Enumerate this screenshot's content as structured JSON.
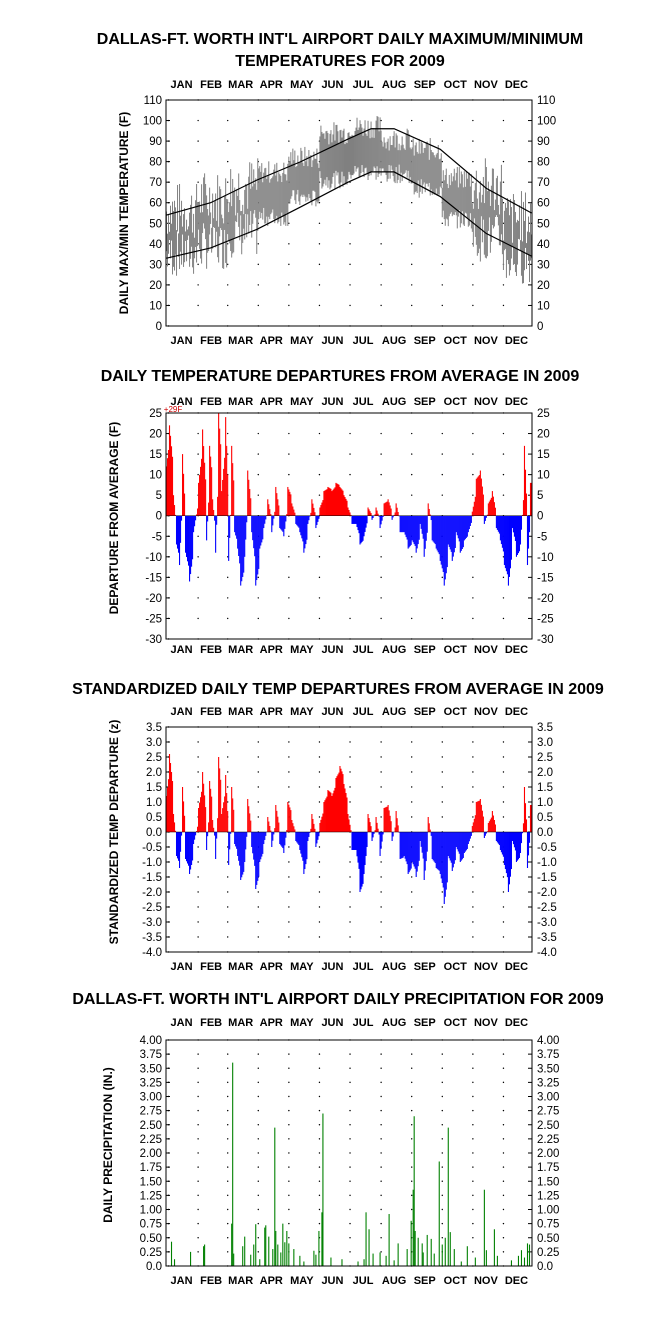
{
  "months": [
    "JAN",
    "FEB",
    "MAR",
    "APR",
    "MAY",
    "JUN",
    "JUL",
    "AUG",
    "SEP",
    "OCT",
    "NOV",
    "DEC"
  ],
  "colors": {
    "range_bar": "#808080",
    "normal_line": "#000000",
    "above": "#ff0000",
    "below": "#0000ff",
    "precip": "#008000",
    "annotation": "#cc0000"
  },
  "chart_data": [
    {
      "type": "line",
      "title": "DALLAS-FT. WORTH INT'L AIRPORT DAILY MAXIMUM/MINIMUM",
      "subtitle": "TEMPERATURES FOR 2009",
      "ylabel": "DAILY MAX/MIN TEMPERATURE (F)",
      "ylim": [
        0,
        110
      ],
      "yticks": [
        "110",
        "100",
        "90",
        "80",
        "70",
        "60",
        "50",
        "40",
        "30",
        "20",
        "10",
        "0"
      ],
      "grid": "dotted",
      "x_unit": "day of year",
      "series": [
        {
          "role": "daily range (gray bars)",
          "approx_max_by_month": [
            56,
            62,
            68,
            75,
            82,
            94,
            97,
            91,
            86,
            72,
            68,
            52
          ],
          "approx_min_by_month": [
            35,
            39,
            45,
            53,
            62,
            71,
            75,
            74,
            67,
            52,
            43,
            32
          ]
        },
        {
          "role": "normal high",
          "points": [
            [
              1,
              54
            ],
            [
              45,
              60
            ],
            [
              91,
              71
            ],
            [
              135,
              80
            ],
            [
              182,
              91
            ],
            [
              205,
              96
            ],
            [
              228,
              96
            ],
            [
              274,
              86
            ],
            [
              320,
              67
            ],
            [
              365,
              55
            ]
          ]
        },
        {
          "role": "normal low",
          "points": [
            [
              1,
              33
            ],
            [
              45,
              38
            ],
            [
              91,
              47
            ],
            [
              135,
              58
            ],
            [
              182,
              70
            ],
            [
              205,
              75
            ],
            [
              228,
              75
            ],
            [
              274,
              63
            ],
            [
              320,
              45
            ],
            [
              365,
              34
            ]
          ]
        }
      ]
    },
    {
      "type": "bar",
      "title": "DAILY TEMPERATURE DEPARTURES FROM AVERAGE IN 2009",
      "ylabel": "DEPARTURE FROM AVERAGE (F)",
      "ylim": [
        -30,
        25
      ],
      "yticks": [
        "25",
        "20",
        "15",
        "10",
        "5",
        "0",
        "-5",
        "-10",
        "-15",
        "-20",
        "-25",
        "-30"
      ],
      "annotation": "+29F",
      "grid": "dotted",
      "daily_values_by_segment": [
        [
          1,
          12
        ],
        [
          4,
          22
        ],
        [
          8,
          5
        ],
        [
          11,
          -7
        ],
        [
          14,
          -12
        ],
        [
          17,
          15
        ],
        [
          20,
          -9
        ],
        [
          24,
          -16
        ],
        [
          28,
          -4
        ],
        [
          33,
          8
        ],
        [
          37,
          21
        ],
        [
          41,
          -6
        ],
        [
          44,
          17
        ],
        [
          47,
          4
        ],
        [
          50,
          -9
        ],
        [
          53,
          25
        ],
        [
          56,
          6
        ],
        [
          60,
          24
        ],
        [
          63,
          -11
        ],
        [
          66,
          17
        ],
        [
          69,
          -4
        ],
        [
          72,
          -8
        ],
        [
          75,
          -17
        ],
        [
          79,
          -10
        ],
        [
          82,
          11
        ],
        [
          86,
          -4
        ],
        [
          90,
          -17
        ],
        [
          94,
          -8
        ],
        [
          98,
          -3
        ],
        [
          102,
          4
        ],
        [
          106,
          -4
        ],
        [
          110,
          7
        ],
        [
          114,
          -3
        ],
        [
          118,
          -5
        ],
        [
          122,
          7
        ],
        [
          126,
          3
        ],
        [
          130,
          -2
        ],
        [
          134,
          -4
        ],
        [
          138,
          -9
        ],
        [
          142,
          -2
        ],
        [
          146,
          4
        ],
        [
          150,
          -3
        ],
        [
          154,
          2
        ],
        [
          158,
          6
        ],
        [
          162,
          7
        ],
        [
          166,
          6
        ],
        [
          170,
          8
        ],
        [
          174,
          7
        ],
        [
          178,
          5
        ],
        [
          182,
          2
        ],
        [
          186,
          -2
        ],
        [
          190,
          -2
        ],
        [
          194,
          -7
        ],
        [
          198,
          -5
        ],
        [
          202,
          2
        ],
        [
          206,
          -1
        ],
        [
          210,
          2
        ],
        [
          214,
          -3
        ],
        [
          218,
          3
        ],
        [
          222,
          4
        ],
        [
          226,
          -1
        ],
        [
          230,
          3
        ],
        [
          234,
          -4
        ],
        [
          238,
          -4
        ],
        [
          242,
          -8
        ],
        [
          246,
          -6
        ],
        [
          250,
          -9
        ],
        [
          254,
          -2
        ],
        [
          258,
          -10
        ],
        [
          262,
          3
        ],
        [
          266,
          -6
        ],
        [
          270,
          -8
        ],
        [
          274,
          -11
        ],
        [
          278,
          -17
        ],
        [
          282,
          -7
        ],
        [
          286,
          -11
        ],
        [
          290,
          -4
        ],
        [
          294,
          -9
        ],
        [
          298,
          -6
        ],
        [
          302,
          -4
        ],
        [
          306,
          1
        ],
        [
          310,
          9
        ],
        [
          314,
          11
        ],
        [
          318,
          -2
        ],
        [
          322,
          3
        ],
        [
          326,
          6
        ],
        [
          330,
          -3
        ],
        [
          334,
          -6
        ],
        [
          338,
          -12
        ],
        [
          342,
          -17
        ],
        [
          346,
          -3
        ],
        [
          350,
          -10
        ],
        [
          354,
          -7
        ],
        [
          358,
          17
        ],
        [
          361,
          -12
        ],
        [
          364,
          8
        ]
      ]
    },
    {
      "type": "bar",
      "title": "STANDARDIZED DAILY TEMP DEPARTURES FROM AVERAGE IN 2009",
      "ylabel": "STANDARDIZED TEMP DEPARTURE (z)",
      "ylim": [
        -4.0,
        3.5
      ],
      "yticks": [
        "3.5",
        "3.0",
        "2.5",
        "2.0",
        "1.5",
        "1.0",
        "0.5",
        "0.0",
        "-0.5",
        "-1.0",
        "-1.5",
        "-2.0",
        "-2.5",
        "-3.0",
        "-3.5",
        "-4.0"
      ],
      "grid": "dotted",
      "daily_values_by_segment": [
        [
          1,
          1.2
        ],
        [
          4,
          2.6
        ],
        [
          8,
          0.6
        ],
        [
          11,
          -0.8
        ],
        [
          14,
          -1.2
        ],
        [
          17,
          1.5
        ],
        [
          20,
          -0.9
        ],
        [
          24,
          -1.4
        ],
        [
          28,
          -0.4
        ],
        [
          33,
          0.8
        ],
        [
          37,
          2.0
        ],
        [
          41,
          -0.6
        ],
        [
          44,
          1.7
        ],
        [
          47,
          0.4
        ],
        [
          50,
          -0.9
        ],
        [
          53,
          2.5
        ],
        [
          56,
          0.6
        ],
        [
          60,
          1.9
        ],
        [
          63,
          -1.1
        ],
        [
          66,
          1.5
        ],
        [
          69,
          -0.4
        ],
        [
          72,
          -0.8
        ],
        [
          75,
          -1.6
        ],
        [
          79,
          -1.0
        ],
        [
          82,
          1.1
        ],
        [
          86,
          -0.5
        ],
        [
          90,
          -1.9
        ],
        [
          94,
          -1.0
        ],
        [
          98,
          -0.4
        ],
        [
          102,
          0.5
        ],
        [
          106,
          -0.5
        ],
        [
          110,
          0.9
        ],
        [
          114,
          -0.4
        ],
        [
          118,
          -0.7
        ],
        [
          122,
          1.0
        ],
        [
          126,
          0.4
        ],
        [
          130,
          -0.3
        ],
        [
          134,
          -0.6
        ],
        [
          138,
          -1.4
        ],
        [
          142,
          -0.3
        ],
        [
          146,
          0.6
        ],
        [
          150,
          -0.5
        ],
        [
          154,
          0.3
        ],
        [
          158,
          1.0
        ],
        [
          162,
          1.4
        ],
        [
          166,
          1.2
        ],
        [
          170,
          1.8
        ],
        [
          174,
          2.2
        ],
        [
          178,
          1.6
        ],
        [
          182,
          0.6
        ],
        [
          186,
          -0.6
        ],
        [
          190,
          -0.6
        ],
        [
          194,
          -2.0
        ],
        [
          198,
          -1.4
        ],
        [
          202,
          0.6
        ],
        [
          206,
          -0.3
        ],
        [
          210,
          0.5
        ],
        [
          214,
          -0.8
        ],
        [
          218,
          0.8
        ],
        [
          222,
          0.9
        ],
        [
          226,
          -0.3
        ],
        [
          230,
          0.7
        ],
        [
          234,
          -0.9
        ],
        [
          238,
          -0.8
        ],
        [
          242,
          -1.4
        ],
        [
          246,
          -1.0
        ],
        [
          250,
          -1.5
        ],
        [
          254,
          -0.3
        ],
        [
          258,
          -1.6
        ],
        [
          262,
          0.5
        ],
        [
          266,
          -0.9
        ],
        [
          270,
          -1.2
        ],
        [
          274,
          -1.4
        ],
        [
          278,
          -2.4
        ],
        [
          282,
          -0.8
        ],
        [
          286,
          -1.3
        ],
        [
          290,
          -0.5
        ],
        [
          294,
          -1.0
        ],
        [
          298,
          -0.7
        ],
        [
          302,
          -0.4
        ],
        [
          306,
          0.2
        ],
        [
          310,
          1.0
        ],
        [
          314,
          1.1
        ],
        [
          318,
          -0.2
        ],
        [
          322,
          0.3
        ],
        [
          326,
          0.7
        ],
        [
          330,
          -0.3
        ],
        [
          334,
          -0.6
        ],
        [
          338,
          -1.1
        ],
        [
          342,
          -2.0
        ],
        [
          346,
          -0.3
        ],
        [
          350,
          -1.0
        ],
        [
          354,
          -0.7
        ],
        [
          358,
          1.5
        ],
        [
          361,
          -1.2
        ],
        [
          364,
          0.9
        ]
      ]
    },
    {
      "type": "bar",
      "title": "DALLAS-FT. WORTH INT'L AIRPORT DAILY PRECIPITATION FOR 2009",
      "ylabel": "DAILY PRECIPITATION (IN.)",
      "ylim": [
        0.0,
        4.0
      ],
      "yticks": [
        "4.00",
        "3.75",
        "3.50",
        "3.25",
        "3.00",
        "2.75",
        "2.50",
        "2.25",
        "2.00",
        "1.75",
        "1.50",
        "1.25",
        "1.00",
        "0.75",
        "0.50",
        "0.25",
        "0.0"
      ],
      "grid": "dotted",
      "daily_values": [
        [
          6,
          0.43
        ],
        [
          9,
          0.12
        ],
        [
          25,
          0.25
        ],
        [
          38,
          0.35
        ],
        [
          39,
          0.38
        ],
        [
          66,
          0.75
        ],
        [
          67,
          3.6
        ],
        [
          68,
          0.22
        ],
        [
          77,
          0.35
        ],
        [
          79,
          0.52
        ],
        [
          85,
          0.2
        ],
        [
          88,
          0.38
        ],
        [
          90,
          0.74
        ],
        [
          94,
          0.12
        ],
        [
          99,
          0.68
        ],
        [
          100,
          0.72
        ],
        [
          103,
          0.52
        ],
        [
          107,
          0.3
        ],
        [
          109,
          2.45
        ],
        [
          110,
          0.62
        ],
        [
          112,
          0.38
        ],
        [
          115,
          0.24
        ],
        [
          117,
          0.75
        ],
        [
          119,
          0.42
        ],
        [
          121,
          0.62
        ],
        [
          123,
          0.4
        ],
        [
          128,
          0.3
        ],
        [
          134,
          0.18
        ],
        [
          138,
          0.08
        ],
        [
          148,
          0.27
        ],
        [
          150,
          0.2
        ],
        [
          153,
          0.62
        ],
        [
          156,
          0.95
        ],
        [
          157,
          2.7
        ],
        [
          165,
          0.15
        ],
        [
          176,
          0.12
        ],
        [
          192,
          0.08
        ],
        [
          198,
          0.12
        ],
        [
          200,
          0.95
        ],
        [
          203,
          0.65
        ],
        [
          207,
          0.22
        ],
        [
          214,
          0.24
        ],
        [
          220,
          0.18
        ],
        [
          223,
          0.92
        ],
        [
          228,
          0.1
        ],
        [
          232,
          0.4
        ],
        [
          241,
          0.3
        ],
        [
          245,
          0.8
        ],
        [
          247,
          1.35
        ],
        [
          248,
          2.65
        ],
        [
          249,
          0.62
        ],
        [
          252,
          0.5
        ],
        [
          256,
          0.4
        ],
        [
          257,
          0.24
        ],
        [
          261,
          0.55
        ],
        [
          265,
          0.48
        ],
        [
          268,
          0.22
        ],
        [
          273,
          1.85
        ],
        [
          276,
          0.38
        ],
        [
          279,
          0.5
        ],
        [
          282,
          2.45
        ],
        [
          284,
          0.6
        ],
        [
          288,
          0.3
        ],
        [
          295,
          0.08
        ],
        [
          301,
          0.35
        ],
        [
          309,
          0.15
        ],
        [
          318,
          1.35
        ],
        [
          320,
          0.28
        ],
        [
          328,
          0.65
        ],
        [
          331,
          0.18
        ],
        [
          345,
          0.1
        ],
        [
          352,
          0.18
        ],
        [
          355,
          0.28
        ],
        [
          358,
          0.15
        ],
        [
          361,
          0.4
        ],
        [
          363,
          0.38
        ]
      ]
    }
  ]
}
